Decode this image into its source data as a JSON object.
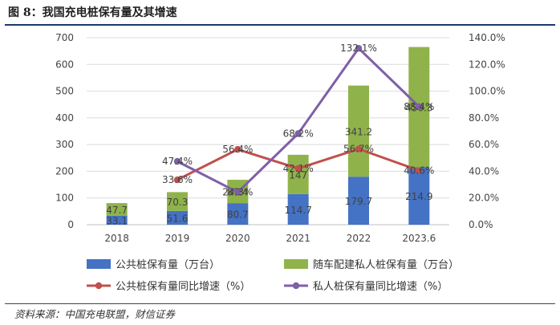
{
  "figure": {
    "title": "图 8：我国充电桩保有量及其增速",
    "source": "资料来源：中国充电联盟，财信证券"
  },
  "chart_data": {
    "type": "bar",
    "stacked": true,
    "categories": [
      "2018",
      "2019",
      "2020",
      "2021",
      "2022",
      "2023.6"
    ],
    "bar_series": [
      {
        "name": "公共桩保有量（万台）",
        "color": "#4472c4",
        "values": [
          33.1,
          51.6,
          80.7,
          114.7,
          179.7,
          214.9
        ],
        "labels": [
          "33.1",
          "51.6",
          "80.7",
          "114.7",
          "179.7",
          "214.9"
        ]
      },
      {
        "name": "随车配建私人桩保有量（万台）",
        "color": "#8fb34a",
        "values": [
          47.7,
          70.3,
          87.4,
          147,
          341.2,
          450.3
        ],
        "labels": [
          "47.7",
          "70.3",
          "87.4",
          "147",
          "341.2",
          "450.3"
        ]
      }
    ],
    "line_series": [
      {
        "name": "公共桩保有量同比增速（%）",
        "color": "#c0504d",
        "values": [
          null,
          33.6,
          56.4,
          42.1,
          56.7,
          40.6
        ],
        "labels": [
          "",
          "33.6%",
          "56.4%",
          "42.1%",
          "56.7%",
          "40.6%"
        ]
      },
      {
        "name": "私人桩保有量同比增速（%）",
        "color": "#7f5fa8",
        "values": [
          null,
          47.4,
          24.3,
          68.2,
          132.1,
          88.4
        ],
        "labels": [
          "",
          "47.4%",
          "24.3%",
          "68.2%",
          "132.1%",
          "88.4%"
        ]
      }
    ],
    "y_left": {
      "min": 0,
      "max": 700,
      "ticks": [
        "0",
        "100",
        "200",
        "300",
        "400",
        "500",
        "600",
        "700"
      ]
    },
    "y_right": {
      "min": 0,
      "max": 140,
      "ticks": [
        "0.0%",
        "20.0%",
        "40.0%",
        "60.0%",
        "80.0%",
        "100.0%",
        "120.0%",
        "140.0%"
      ]
    },
    "grid": true,
    "legend_position": "bottom"
  }
}
